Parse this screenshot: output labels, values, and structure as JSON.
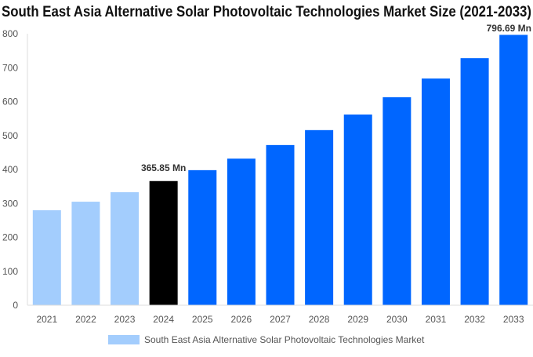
{
  "chart_data": {
    "type": "bar",
    "title": "South East Asia Alternative Solar Photovoltaic Technologies Market Size (2021-2033)",
    "categories": [
      "2021",
      "2022",
      "2023",
      "2024",
      "2025",
      "2026",
      "2027",
      "2028",
      "2029",
      "2030",
      "2031",
      "2032",
      "2033"
    ],
    "series": [
      {
        "name": "South East Asia Alternative Solar Photovoltaic Technologies Market",
        "values": [
          280,
          305,
          333,
          365.85,
          398,
          432,
          472,
          516,
          562,
          613,
          668,
          728,
          796.69
        ]
      }
    ],
    "data_labels": [
      {
        "category": "2024",
        "text": "365.85 Mn"
      },
      {
        "category": "2033",
        "text": "796.69 Mn"
      }
    ],
    "ylim": [
      0,
      800
    ],
    "yticks": [
      0,
      100,
      200,
      300,
      400,
      500,
      600,
      700,
      800
    ],
    "xlabel": "",
    "ylabel": "",
    "grid": false,
    "legend_position": "bottom",
    "colors": {
      "historical": "#a3cdfd",
      "current": "#000000",
      "forecast": "#0066ff",
      "axis_text": "#555555"
    },
    "historical_years": [
      "2021",
      "2022",
      "2023"
    ],
    "current_year": "2024"
  }
}
